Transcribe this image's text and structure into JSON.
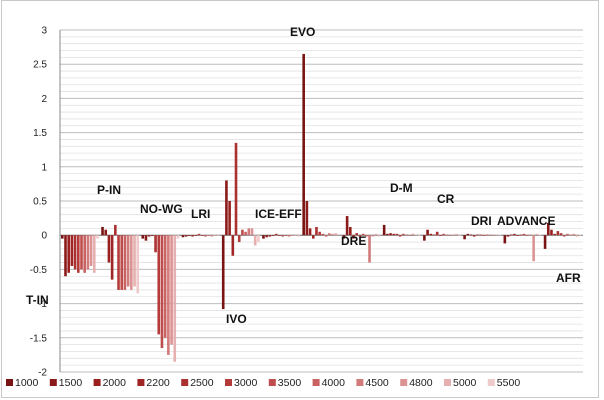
{
  "chart_data": {
    "type": "bar",
    "title": "",
    "xlabel": "",
    "ylabel": "",
    "ylim": [
      -2,
      3
    ],
    "yticks": [
      "3",
      "2.5",
      "2",
      "1.5",
      "1",
      "0.5",
      "0",
      "-0.5",
      "-1",
      "-1.5",
      "-2"
    ],
    "grid": true,
    "legend_position": "bottom",
    "series_names": [
      "1000",
      "1500",
      "2000",
      "2200",
      "2500",
      "3000",
      "3500",
      "4000",
      "4500",
      "4800",
      "5000",
      "5500"
    ],
    "series_colors": [
      "#7a1414",
      "#8b1a1a",
      "#9a2020",
      "#a02626",
      "#ab3030",
      "#b53b3b",
      "#bf4d4d",
      "#c96262",
      "#d37a7a",
      "#dc9393",
      "#e6b0b0",
      "#efcaca"
    ],
    "groups": [
      {
        "label": "T-IN",
        "values": [
          -0.05,
          -0.6,
          -0.55,
          -0.45,
          -0.5,
          -0.55,
          -0.5,
          -0.55,
          -0.5,
          -0.45,
          -0.55,
          -0.05
        ]
      },
      {
        "label": "P-IN",
        "values": [
          0.12,
          0.08,
          -0.4,
          -0.65,
          0.15,
          -0.8,
          -0.8,
          -0.8,
          -0.75,
          -0.8,
          -0.75,
          -0.85
        ]
      },
      {
        "label": "NO-WG",
        "values": [
          -0.05,
          -0.08,
          -0.02,
          -0.01,
          -0.25,
          -1.45,
          -1.65,
          -1.5,
          -1.75,
          -1.6,
          -1.85,
          -0.05
        ]
      },
      {
        "label": "LRI",
        "values": [
          -0.03,
          -0.02,
          -0.01,
          -0.02,
          -0.01,
          0.02,
          -0.01,
          -0.02,
          -0.01,
          -0.02,
          -0.01,
          -0.01
        ]
      },
      {
        "label": "IVO",
        "values": [
          -1.08,
          0.8,
          0.5,
          -0.3,
          1.35,
          -0.1,
          0.08,
          0.05,
          0.1,
          0.1,
          -0.15,
          -0.1
        ]
      },
      {
        "label": "ICE-EFF",
        "values": [
          -0.05,
          -0.03,
          -0.02,
          -0.01,
          0.02,
          -0.01,
          -0.02,
          -0.01,
          -0.02,
          -0.01,
          -0.01,
          -0.02
        ]
      },
      {
        "label": "EVO",
        "values": [
          2.65,
          0.5,
          0.1,
          -0.05,
          0.12,
          0.05,
          0.02,
          -0.02,
          0.03,
          0.02,
          0.03,
          0.02
        ]
      },
      {
        "label": "DRE",
        "values": [
          -0.05,
          0.28,
          0.12,
          -0.05,
          0.03,
          -0.02,
          0.02,
          -0.02,
          -0.4,
          -0.02,
          0.02,
          -0.02
        ]
      },
      {
        "label": "D-M",
        "values": [
          0.15,
          0.02,
          0.03,
          0.02,
          0.02,
          -0.02,
          0.02,
          0.01,
          -0.01,
          0.02,
          0.01,
          -0.01
        ]
      },
      {
        "label": "CR",
        "values": [
          -0.08,
          0.08,
          0.02,
          0.01,
          0.05,
          -0.01,
          0.02,
          0.01,
          -0.01,
          0.01,
          0.02,
          -0.01
        ]
      },
      {
        "label": "DRI",
        "values": [
          -0.06,
          0.02,
          0.01,
          -0.02,
          0.01,
          0.01,
          -0.01,
          0.01,
          0.01,
          -0.01,
          0.01,
          0.01
        ]
      },
      {
        "label": "ADVANCE",
        "values": [
          -0.12,
          -0.02,
          0.01,
          0.02,
          -0.01,
          0.01,
          0.02,
          -0.01,
          0.01,
          -0.38,
          0.02,
          0.01
        ]
      },
      {
        "label": "AFR",
        "values": [
          -0.2,
          0.18,
          0.08,
          0.02,
          0.06,
          0.03,
          -0.02,
          0.02,
          0.01,
          0.02,
          -0.02,
          0.01
        ]
      }
    ],
    "annotations": [
      "EVO",
      "P-IN",
      "NO-WG",
      "LRI",
      "ICE-EFF",
      "D-M",
      "CR",
      "DRI",
      "ADVANCE",
      "DRE",
      "T-IN",
      "IVO",
      "AFR"
    ]
  }
}
